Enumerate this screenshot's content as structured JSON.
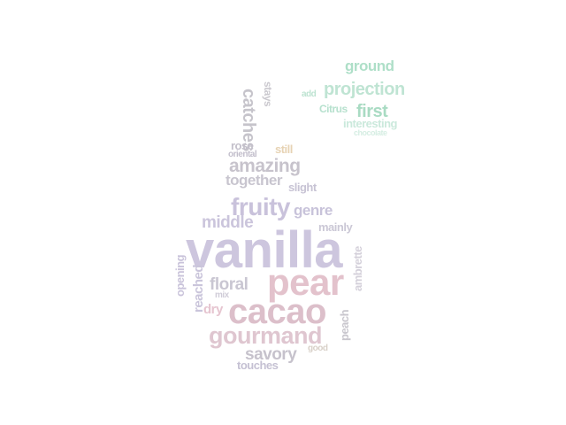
{
  "palette": {
    "lavender": "#cfc6dd",
    "lavender_dark": "#c5bdd6",
    "pink": "#dfc2cc",
    "pink_light": "#e7cbd4",
    "gray": "#c2c0c8",
    "mint": "#a9dcc4",
    "mint_light": "#bfe6d5",
    "tan": "#e3cfae",
    "purple_gray": "#bdb6cc"
  },
  "words": [
    {
      "text": "vanilla",
      "color": "#cdc6de"
    },
    {
      "text": "pear",
      "color": "#e3c2cc"
    },
    {
      "text": "cacao",
      "color": "#dcbfca"
    },
    {
      "text": "gourmand",
      "color": "#dfc6d0"
    },
    {
      "text": "fruity",
      "color": "#c9c2db"
    },
    {
      "text": "amazing",
      "color": "#c7c3cc"
    },
    {
      "text": "middle",
      "color": "#cbc5dc"
    },
    {
      "text": "floral",
      "color": "#c9c6d2"
    },
    {
      "text": "savory",
      "color": "#c6c2cc"
    },
    {
      "text": "together",
      "color": "#c8c5cf"
    },
    {
      "text": "genre",
      "color": "#c8c3da"
    },
    {
      "text": "catches",
      "color": "#c6c4cb"
    },
    {
      "text": "projection",
      "color": "#bfe4d3"
    },
    {
      "text": "ground",
      "color": "#aedfc8"
    },
    {
      "text": "first",
      "color": "#a9dbc3"
    },
    {
      "text": "interesting",
      "color": "#cbe9dc"
    },
    {
      "text": "chocolate",
      "color": "#d6eee3"
    },
    {
      "text": "Citrus",
      "color": "#b7e1ce"
    },
    {
      "text": "add",
      "color": "#bde3d1"
    },
    {
      "text": "stays",
      "color": "#cac8ce"
    },
    {
      "text": "rose",
      "color": "#c4c0cb"
    },
    {
      "text": "oriental",
      "color": "#c3bfcc"
    },
    {
      "text": "still",
      "color": "#e7d3b4"
    },
    {
      "text": "slight",
      "color": "#c7c3d4"
    },
    {
      "text": "mainly",
      "color": "#cbc8d6"
    },
    {
      "text": "opening",
      "color": "#c9c3da"
    },
    {
      "text": "reached",
      "color": "#cac5db"
    },
    {
      "text": "dry",
      "color": "#e6c5d0"
    },
    {
      "text": "mix",
      "color": "#d0ccd8"
    },
    {
      "text": "ambrette",
      "color": "#d4d0da"
    },
    {
      "text": "peach",
      "color": "#c8c6cd"
    },
    {
      "text": "good",
      "color": "#d8d0c8"
    },
    {
      "text": "touches",
      "color": "#c5c1d3"
    }
  ]
}
